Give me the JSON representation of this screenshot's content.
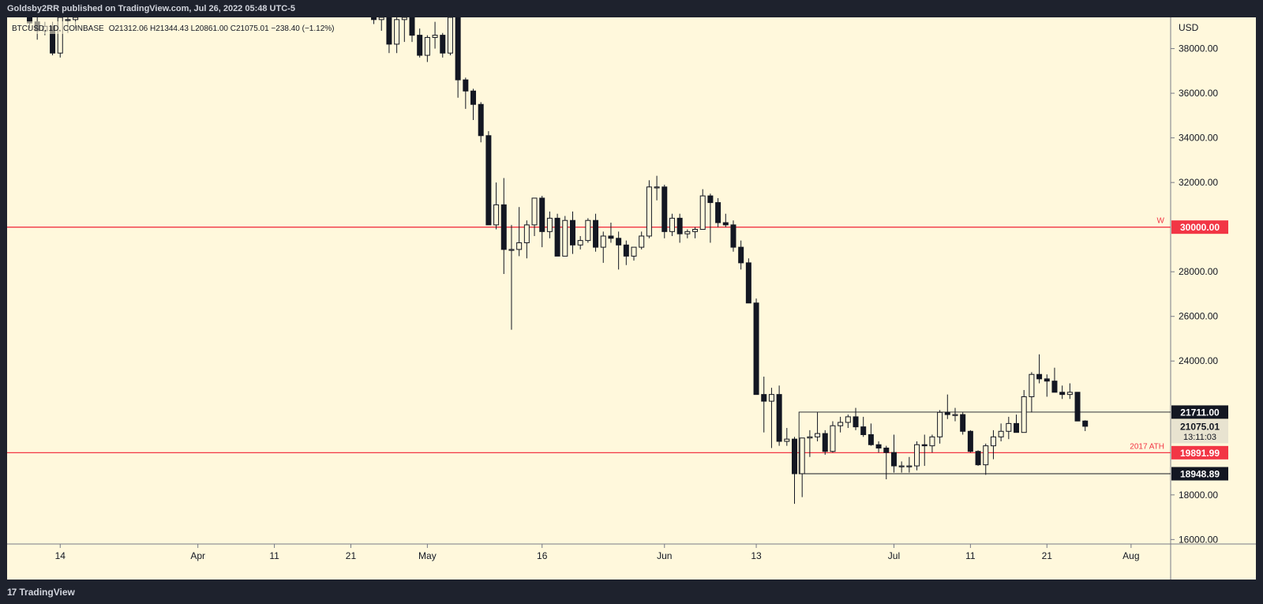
{
  "header": {
    "published": "Goldsby2RR published on TradingView.com, Jul 26, 2022 05:48 UTC-5"
  },
  "symbol_line": {
    "symbol": "BTCUSD, 1D, COINBASE",
    "ohlc": "O21312.06 H21344.43 L20861.00 C21075.01 −238.40 (−1.12%)"
  },
  "footer": {
    "brand": "TradingView"
  },
  "colors": {
    "background": "#fff8dc",
    "candle_body": "#131722",
    "level_line": "#f23645",
    "range_line": "#131722",
    "axis_text": "#131722"
  },
  "chart_data": {
    "type": "candlestick",
    "currency": "USD",
    "ylim": [
      15800,
      39400
    ],
    "y_ticks": [
      16000,
      18000,
      24000,
      26000,
      28000,
      32000,
      34000,
      36000,
      38000
    ],
    "y_tick_labels": [
      "16000.00",
      "18000.00",
      "24000.00",
      "26000.00",
      "28000.00",
      "32000.00",
      "34000.00",
      "36000.00",
      "38000.00"
    ],
    "x_ticks": [
      {
        "date": "2022-03-14",
        "label": "14"
      },
      {
        "date": "2022-04-01",
        "label": "Apr"
      },
      {
        "date": "2022-04-11",
        "label": "11"
      },
      {
        "date": "2022-04-21",
        "label": "21"
      },
      {
        "date": "2022-05-01",
        "label": "May"
      },
      {
        "date": "2022-05-16",
        "label": "16"
      },
      {
        "date": "2022-06-01",
        "label": "Jun"
      },
      {
        "date": "2022-06-13",
        "label": "13"
      },
      {
        "date": "2022-07-01",
        "label": "Jul"
      },
      {
        "date": "2022-07-11",
        "label": "11"
      },
      {
        "date": "2022-07-21",
        "label": "21"
      },
      {
        "date": "2022-08-01",
        "label": "Aug"
      }
    ],
    "horizontal_levels": [
      {
        "value": 30000,
        "label": "30000.00",
        "tag": "W",
        "style": "red"
      },
      {
        "value": 19891.99,
        "label": "19891.99",
        "tag": "2017 ATH",
        "style": "red"
      }
    ],
    "range_box": {
      "top": 21711,
      "bottom": 18948.89,
      "start": "2022-06-19",
      "top_label": "21711.00",
      "bottom_label": "18948.89"
    },
    "last_price": {
      "value": 21075.01,
      "label": "21075.01",
      "countdown": "13:11:03"
    },
    "candles": [
      {
        "d": "2022-03-10",
        "o": 39400,
        "h": 39400,
        "l": 38900,
        "c": 39150
      },
      {
        "d": "2022-03-11",
        "o": 39200,
        "h": 39400,
        "l": 38400,
        "c": 38800
      },
      {
        "d": "2022-03-12",
        "o": 38800,
        "h": 39200,
        "l": 38600,
        "c": 39000
      },
      {
        "d": "2022-03-13",
        "o": 39000,
        "h": 39200,
        "l": 37700,
        "c": 37800
      },
      {
        "d": "2022-03-14",
        "o": 37800,
        "h": 39400,
        "l": 37600,
        "c": 39400
      },
      {
        "d": "2022-03-15",
        "o": 39300,
        "h": 39400,
        "l": 38700,
        "c": 39300
      },
      {
        "d": "2022-03-16",
        "o": 39300,
        "h": 39400,
        "l": 38900,
        "c": 39400
      },
      {
        "d": "2022-04-24",
        "o": 39400,
        "h": 39400,
        "l": 39100,
        "c": 39300
      },
      {
        "d": "2022-04-25",
        "o": 39300,
        "h": 39400,
        "l": 38800,
        "c": 39400
      },
      {
        "d": "2022-04-26",
        "o": 39400,
        "h": 39400,
        "l": 37800,
        "c": 38200
      },
      {
        "d": "2022-04-27",
        "o": 38200,
        "h": 39400,
        "l": 37800,
        "c": 39300
      },
      {
        "d": "2022-04-28",
        "o": 39300,
        "h": 39400,
        "l": 38300,
        "c": 39400
      },
      {
        "d": "2022-04-29",
        "o": 39400,
        "h": 39400,
        "l": 38300,
        "c": 38600
      },
      {
        "d": "2022-04-30",
        "o": 38600,
        "h": 38900,
        "l": 37600,
        "c": 37700
      },
      {
        "d": "2022-05-01",
        "o": 37700,
        "h": 38600,
        "l": 37400,
        "c": 38500
      },
      {
        "d": "2022-05-02",
        "o": 38500,
        "h": 39200,
        "l": 38000,
        "c": 38600
      },
      {
        "d": "2022-05-03",
        "o": 38600,
        "h": 38700,
        "l": 37600,
        "c": 37800
      },
      {
        "d": "2022-05-04",
        "o": 37800,
        "h": 39400,
        "l": 37700,
        "c": 39400
      },
      {
        "d": "2022-05-05",
        "o": 39400,
        "h": 39400,
        "l": 35800,
        "c": 36600
      },
      {
        "d": "2022-05-06",
        "o": 36600,
        "h": 36700,
        "l": 35300,
        "c": 36100
      },
      {
        "d": "2022-05-07",
        "o": 36100,
        "h": 36200,
        "l": 34800,
        "c": 35500
      },
      {
        "d": "2022-05-08",
        "o": 35500,
        "h": 35600,
        "l": 33800,
        "c": 34100
      },
      {
        "d": "2022-05-09",
        "o": 34100,
        "h": 34300,
        "l": 30100,
        "c": 30100
      },
      {
        "d": "2022-05-10",
        "o": 30100,
        "h": 32000,
        "l": 29900,
        "c": 31000
      },
      {
        "d": "2022-05-11",
        "o": 31000,
        "h": 32200,
        "l": 27900,
        "c": 29000
      },
      {
        "d": "2022-05-12",
        "o": 29000,
        "h": 30100,
        "l": 25400,
        "c": 29000
      },
      {
        "d": "2022-05-13",
        "o": 29000,
        "h": 30900,
        "l": 28700,
        "c": 29300
      },
      {
        "d": "2022-05-14",
        "o": 29300,
        "h": 30300,
        "l": 28600,
        "c": 30100
      },
      {
        "d": "2022-05-15",
        "o": 30100,
        "h": 31300,
        "l": 29600,
        "c": 31300
      },
      {
        "d": "2022-05-16",
        "o": 31300,
        "h": 31400,
        "l": 29100,
        "c": 29800
      },
      {
        "d": "2022-05-17",
        "o": 29800,
        "h": 30700,
        "l": 29500,
        "c": 30400
      },
      {
        "d": "2022-05-18",
        "o": 30400,
        "h": 30600,
        "l": 28700,
        "c": 28700
      },
      {
        "d": "2022-05-19",
        "o": 28700,
        "h": 30500,
        "l": 28700,
        "c": 30300
      },
      {
        "d": "2022-05-20",
        "o": 30300,
        "h": 30700,
        "l": 28800,
        "c": 29200
      },
      {
        "d": "2022-05-21",
        "o": 29200,
        "h": 29600,
        "l": 29000,
        "c": 29400
      },
      {
        "d": "2022-05-22",
        "o": 29400,
        "h": 30400,
        "l": 29300,
        "c": 30300
      },
      {
        "d": "2022-05-23",
        "o": 30300,
        "h": 30600,
        "l": 28900,
        "c": 29100
      },
      {
        "d": "2022-05-24",
        "o": 29100,
        "h": 29800,
        "l": 28400,
        "c": 29600
      },
      {
        "d": "2022-05-25",
        "o": 29600,
        "h": 30200,
        "l": 29300,
        "c": 29500
      },
      {
        "d": "2022-05-26",
        "o": 29500,
        "h": 29800,
        "l": 28100,
        "c": 29200
      },
      {
        "d": "2022-05-27",
        "o": 29200,
        "h": 29400,
        "l": 28300,
        "c": 28700
      },
      {
        "d": "2022-05-28",
        "o": 28700,
        "h": 29100,
        "l": 28500,
        "c": 29100
      },
      {
        "d": "2022-05-29",
        "o": 29100,
        "h": 29800,
        "l": 29000,
        "c": 29600
      },
      {
        "d": "2022-05-30",
        "o": 29600,
        "h": 32100,
        "l": 29500,
        "c": 31800
      },
      {
        "d": "2022-05-31",
        "o": 31800,
        "h": 32300,
        "l": 31200,
        "c": 31800
      },
      {
        "d": "2022-06-01",
        "o": 31800,
        "h": 31900,
        "l": 29500,
        "c": 29800
      },
      {
        "d": "2022-06-02",
        "o": 29800,
        "h": 30600,
        "l": 29600,
        "c": 30400
      },
      {
        "d": "2022-06-03",
        "o": 30400,
        "h": 30600,
        "l": 29300,
        "c": 29700
      },
      {
        "d": "2022-06-04",
        "o": 29700,
        "h": 29900,
        "l": 29500,
        "c": 29800
      },
      {
        "d": "2022-06-05",
        "o": 29800,
        "h": 30000,
        "l": 29500,
        "c": 29900
      },
      {
        "d": "2022-06-06",
        "o": 29900,
        "h": 31700,
        "l": 29900,
        "c": 31400
      },
      {
        "d": "2022-06-07",
        "o": 31400,
        "h": 31500,
        "l": 29300,
        "c": 31100
      },
      {
        "d": "2022-06-08",
        "o": 31100,
        "h": 31300,
        "l": 30000,
        "c": 30200
      },
      {
        "d": "2022-06-09",
        "o": 30200,
        "h": 30600,
        "l": 30000,
        "c": 30100
      },
      {
        "d": "2022-06-10",
        "o": 30100,
        "h": 30300,
        "l": 28900,
        "c": 29100
      },
      {
        "d": "2022-06-11",
        "o": 29100,
        "h": 29400,
        "l": 28100,
        "c": 28400
      },
      {
        "d": "2022-06-12",
        "o": 28400,
        "h": 28600,
        "l": 26600,
        "c": 26600
      },
      {
        "d": "2022-06-13",
        "o": 26600,
        "h": 26800,
        "l": 22600,
        "c": 22500
      },
      {
        "d": "2022-06-14",
        "o": 22500,
        "h": 23300,
        "l": 20800,
        "c": 22200
      },
      {
        "d": "2022-06-15",
        "o": 22200,
        "h": 22800,
        "l": 20100,
        "c": 22500
      },
      {
        "d": "2022-06-16",
        "o": 22500,
        "h": 22900,
        "l": 20200,
        "c": 20400
      },
      {
        "d": "2022-06-17",
        "o": 20400,
        "h": 21000,
        "l": 20200,
        "c": 20500
      },
      {
        "d": "2022-06-18",
        "o": 20500,
        "h": 20600,
        "l": 17600,
        "c": 18950
      },
      {
        "d": "2022-06-19",
        "o": 18950,
        "h": 20500,
        "l": 17900,
        "c": 20550
      },
      {
        "d": "2022-06-20",
        "o": 20550,
        "h": 20900,
        "l": 19700,
        "c": 20600
      },
      {
        "d": "2022-06-21",
        "o": 20600,
        "h": 21700,
        "l": 20400,
        "c": 20750
      },
      {
        "d": "2022-06-22",
        "o": 20750,
        "h": 20900,
        "l": 19800,
        "c": 19950
      },
      {
        "d": "2022-06-23",
        "o": 19950,
        "h": 21300,
        "l": 19900,
        "c": 21100
      },
      {
        "d": "2022-06-24",
        "o": 21100,
        "h": 21500,
        "l": 20800,
        "c": 21250
      },
      {
        "d": "2022-06-25",
        "o": 21250,
        "h": 21600,
        "l": 21000,
        "c": 21500
      },
      {
        "d": "2022-06-26",
        "o": 21500,
        "h": 21900,
        "l": 20900,
        "c": 21050
      },
      {
        "d": "2022-06-27",
        "o": 21050,
        "h": 21500,
        "l": 20600,
        "c": 20700
      },
      {
        "d": "2022-06-28",
        "o": 20700,
        "h": 21200,
        "l": 20200,
        "c": 20250
      },
      {
        "d": "2022-06-29",
        "o": 20250,
        "h": 20400,
        "l": 19900,
        "c": 20100
      },
      {
        "d": "2022-06-30",
        "o": 20100,
        "h": 20200,
        "l": 18700,
        "c": 19900
      },
      {
        "d": "2022-07-01",
        "o": 19900,
        "h": 20700,
        "l": 19000,
        "c": 19300
      },
      {
        "d": "2022-07-02",
        "o": 19300,
        "h": 19500,
        "l": 19000,
        "c": 19300
      },
      {
        "d": "2022-07-03",
        "o": 19300,
        "h": 19700,
        "l": 19000,
        "c": 19300
      },
      {
        "d": "2022-07-04",
        "o": 19300,
        "h": 20400,
        "l": 19100,
        "c": 20250
      },
      {
        "d": "2022-07-05",
        "o": 20250,
        "h": 20700,
        "l": 19300,
        "c": 20200
      },
      {
        "d": "2022-07-06",
        "o": 20200,
        "h": 20700,
        "l": 19900,
        "c": 20600
      },
      {
        "d": "2022-07-07",
        "o": 20600,
        "h": 21800,
        "l": 20300,
        "c": 21700
      },
      {
        "d": "2022-07-08",
        "o": 21700,
        "h": 22500,
        "l": 21400,
        "c": 21600
      },
      {
        "d": "2022-07-09",
        "o": 21600,
        "h": 21900,
        "l": 21300,
        "c": 21600
      },
      {
        "d": "2022-07-10",
        "o": 21600,
        "h": 21700,
        "l": 20700,
        "c": 20850
      },
      {
        "d": "2022-07-11",
        "o": 20850,
        "h": 20900,
        "l": 19900,
        "c": 19950
      },
      {
        "d": "2022-07-12",
        "o": 19950,
        "h": 20000,
        "l": 19300,
        "c": 19350
      },
      {
        "d": "2022-07-13",
        "o": 19350,
        "h": 20300,
        "l": 18900,
        "c": 20200
      },
      {
        "d": "2022-07-14",
        "o": 20200,
        "h": 20900,
        "l": 19600,
        "c": 20600
      },
      {
        "d": "2022-07-15",
        "o": 20600,
        "h": 21200,
        "l": 20400,
        "c": 20850
      },
      {
        "d": "2022-07-16",
        "o": 20850,
        "h": 21500,
        "l": 20500,
        "c": 21200
      },
      {
        "d": "2022-07-17",
        "o": 21200,
        "h": 21600,
        "l": 20800,
        "c": 20800
      },
      {
        "d": "2022-07-18",
        "o": 20800,
        "h": 22700,
        "l": 20800,
        "c": 22400
      },
      {
        "d": "2022-07-19",
        "o": 22400,
        "h": 23500,
        "l": 21700,
        "c": 23400
      },
      {
        "d": "2022-07-20",
        "o": 23400,
        "h": 24300,
        "l": 23000,
        "c": 23200
      },
      {
        "d": "2022-07-21",
        "o": 23200,
        "h": 23400,
        "l": 22400,
        "c": 23100
      },
      {
        "d": "2022-07-22",
        "o": 23100,
        "h": 23700,
        "l": 22700,
        "c": 22600
      },
      {
        "d": "2022-07-23",
        "o": 22600,
        "h": 22900,
        "l": 22300,
        "c": 22500
      },
      {
        "d": "2022-07-24",
        "o": 22500,
        "h": 23000,
        "l": 22300,
        "c": 22600
      },
      {
        "d": "2022-07-25",
        "o": 22600,
        "h": 22600,
        "l": 21300,
        "c": 21312.06
      },
      {
        "d": "2022-07-26",
        "o": 21312.06,
        "h": 21344.43,
        "l": 20861,
        "c": 21075.01
      }
    ]
  }
}
